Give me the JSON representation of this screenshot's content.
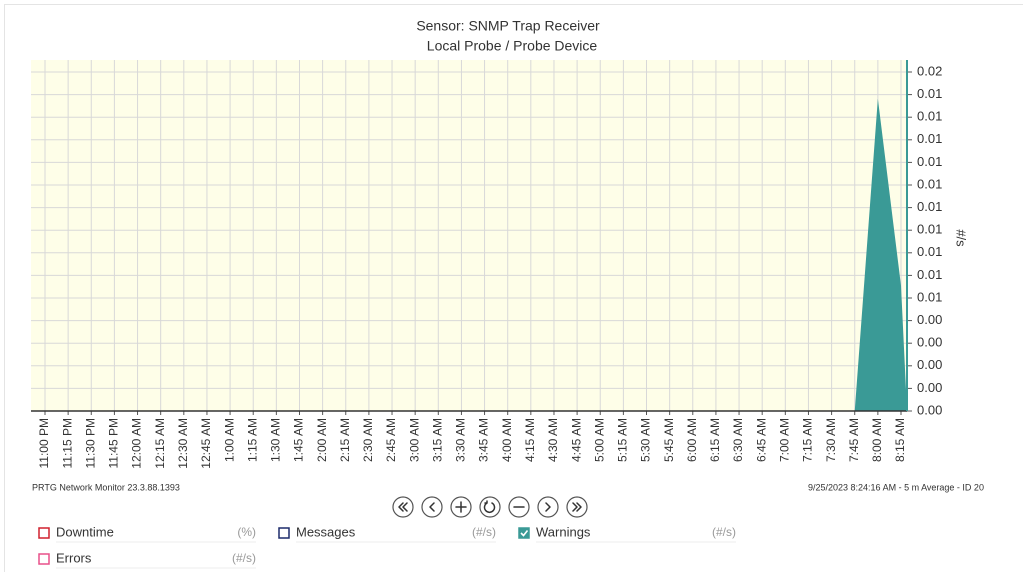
{
  "chart_data": {
    "type": "area",
    "title": "Sensor: SNMP Trap Receiver",
    "subtitle": "Local Probe / Probe Device",
    "y_label": "#/s",
    "categories": [
      "11:00 PM",
      "11:15 PM",
      "11:30 PM",
      "11:45 PM",
      "12:00 AM",
      "12:15 AM",
      "12:30 AM",
      "12:45 AM",
      "1:00 AM",
      "1:15 AM",
      "1:30 AM",
      "1:45 AM",
      "2:00 AM",
      "2:15 AM",
      "2:30 AM",
      "2:45 AM",
      "3:00 AM",
      "3:15 AM",
      "3:30 AM",
      "3:45 AM",
      "4:00 AM",
      "4:15 AM",
      "4:30 AM",
      "4:45 AM",
      "5:00 AM",
      "5:15 AM",
      "5:30 AM",
      "5:45 AM",
      "6:00 AM",
      "6:15 AM",
      "6:30 AM",
      "6:45 AM",
      "7:00 AM",
      "7:15 AM",
      "7:30 AM",
      "7:45 AM",
      "8:00 AM",
      "8:15 AM"
    ],
    "series": [
      {
        "name": "Warnings",
        "unit": "(#/s)",
        "color": "#3a9a96",
        "values": [
          0,
          0,
          0,
          0,
          0,
          0,
          0,
          0,
          0,
          0,
          0,
          0,
          0,
          0,
          0,
          0,
          0,
          0,
          0,
          0,
          0,
          0,
          0,
          0,
          0,
          0,
          0,
          0,
          0,
          0,
          0,
          0,
          0,
          0,
          0,
          0,
          0.0152,
          0.0061
        ]
      }
    ],
    "ylim": [
      0,
      0.0165
    ],
    "yticks": [
      {
        "value": 0,
        "label": "0.00"
      },
      {
        "value": 0.0011,
        "label": "0.00"
      },
      {
        "value": 0.0022,
        "label": "0.00"
      },
      {
        "value": 0.0033,
        "label": "0.00"
      },
      {
        "value": 0.0044,
        "label": "0.00"
      },
      {
        "value": 0.0055,
        "label": "0.01"
      },
      {
        "value": 0.0066,
        "label": "0.01"
      },
      {
        "value": 0.0077,
        "label": "0.01"
      },
      {
        "value": 0.0088,
        "label": "0.01"
      },
      {
        "value": 0.0099,
        "label": "0.01"
      },
      {
        "value": 0.011,
        "label": "0.01"
      },
      {
        "value": 0.0121,
        "label": "0.01"
      },
      {
        "value": 0.0132,
        "label": "0.01"
      },
      {
        "value": 0.0143,
        "label": "0.01"
      },
      {
        "value": 0.0154,
        "label": "0.01"
      },
      {
        "value": 0.0165,
        "label": "0.02"
      }
    ],
    "grid": true,
    "background": "#fefee8"
  },
  "footer": {
    "left": "PRTG Network Monitor 23.3.88.1393",
    "right": "9/25/2023 8:24:16 AM - 5 m Average - ID 20"
  },
  "legend": [
    {
      "name": "Downtime",
      "unit": "(%)",
      "color": "#d0202e"
    },
    {
      "name": "Messages",
      "unit": "(#/s)",
      "color": "#1d2b6b"
    },
    {
      "name": "Errors",
      "unit": "(#/s)",
      "color": "#e8508a"
    }
  ]
}
